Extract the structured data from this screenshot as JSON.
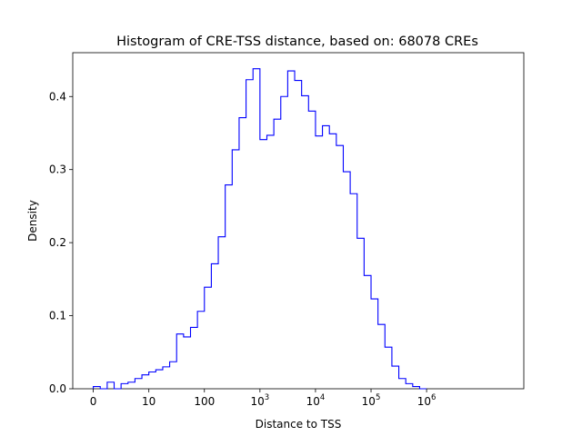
{
  "chart_data": {
    "type": "histogram",
    "title": "Histogram of CRE-TSS distance, based on: 68078 CREs",
    "xlabel": "Distance to TSS",
    "ylabel": "Density",
    "x_scale": "symlog",
    "xlim": [
      -0.37,
      7.75
    ],
    "ylim": [
      0,
      0.46
    ],
    "grid": false,
    "legend": "none",
    "line_color": "#0000ff",
    "x_ticks": [
      {
        "pos": 0,
        "base": "0",
        "exp": ""
      },
      {
        "pos": 1,
        "base": "10",
        "exp": ""
      },
      {
        "pos": 2,
        "base": "100",
        "exp": ""
      },
      {
        "pos": 3,
        "base": "10",
        "exp": "3"
      },
      {
        "pos": 4,
        "base": "10",
        "exp": "4"
      },
      {
        "pos": 5,
        "base": "10",
        "exp": "5"
      },
      {
        "pos": 6,
        "base": "10",
        "exp": "6"
      }
    ],
    "y_ticks": [
      {
        "value": 0.0,
        "label": "0.0"
      },
      {
        "value": 0.1,
        "label": "0.1"
      },
      {
        "value": 0.2,
        "label": "0.2"
      },
      {
        "value": 0.3,
        "label": "0.3"
      },
      {
        "value": 0.4,
        "label": "0.4"
      }
    ],
    "bin_edges": [
      0.0,
      0.125,
      0.25,
      0.375,
      0.5,
      0.625,
      0.75,
      0.875,
      1.0,
      1.125,
      1.25,
      1.375,
      1.5,
      1.625,
      1.75,
      1.875,
      2.0,
      2.125,
      2.25,
      2.375,
      2.5,
      2.625,
      2.75,
      2.875,
      3.0,
      3.125,
      3.25,
      3.375,
      3.5,
      3.625,
      3.75,
      3.875,
      4.0,
      4.125,
      4.25,
      4.375,
      4.5,
      4.625,
      4.75,
      4.875,
      5.0,
      5.125,
      5.25,
      5.375,
      5.5,
      5.625,
      5.75,
      5.875,
      6.0
    ],
    "values": [
      0.003,
      0.0,
      0.009,
      0.0,
      0.007,
      0.009,
      0.014,
      0.019,
      0.023,
      0.026,
      0.03,
      0.037,
      0.075,
      0.071,
      0.084,
      0.106,
      0.139,
      0.171,
      0.208,
      0.279,
      0.327,
      0.371,
      0.423,
      0.438,
      0.341,
      0.347,
      0.369,
      0.4,
      0.435,
      0.422,
      0.401,
      0.38,
      0.346,
      0.36,
      0.349,
      0.333,
      0.297,
      0.267,
      0.206,
      0.155,
      0.123,
      0.088,
      0.057,
      0.031,
      0.014,
      0.007,
      0.003,
      0.0
    ]
  }
}
